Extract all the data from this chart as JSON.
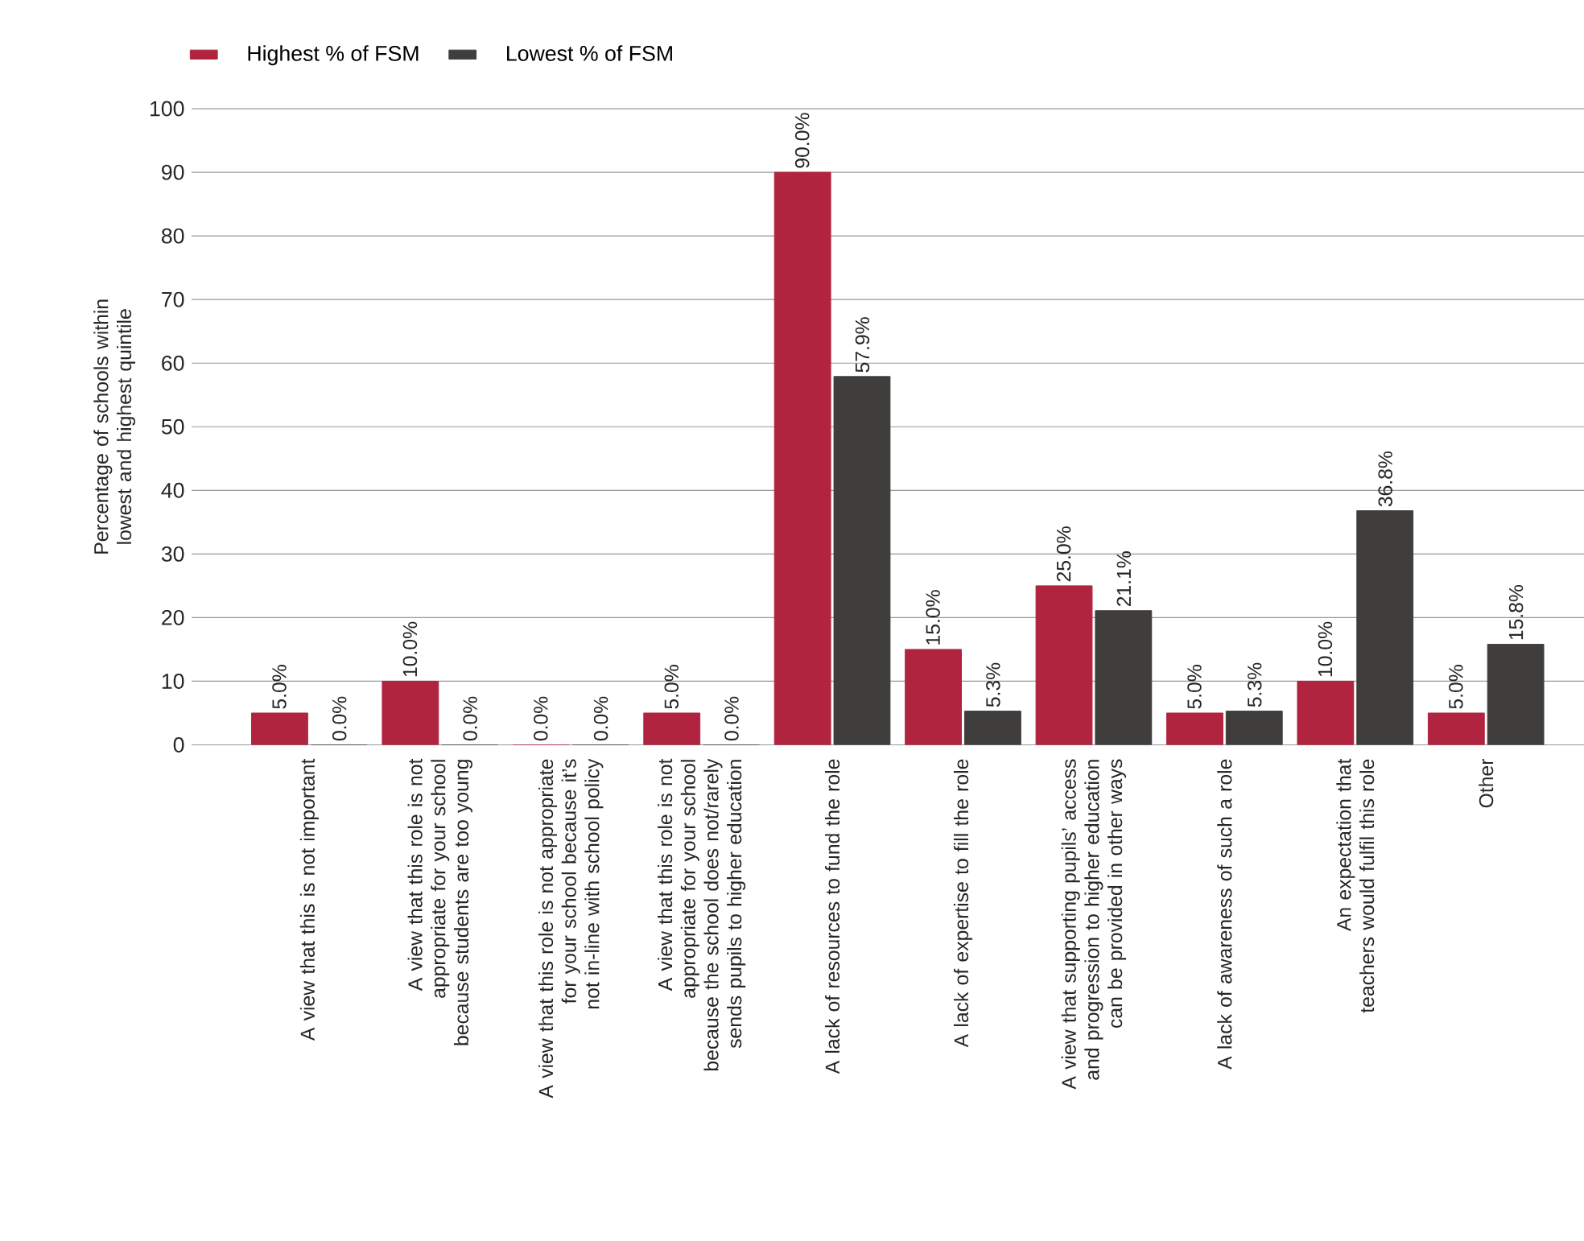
{
  "chart_data": {
    "type": "bar",
    "ylabel": "Percentage of schools within lowest and highest quintile",
    "categories": [
      "A view that this is not important",
      "A view that this role is not appropriate for your school because students are too young",
      "A view that this role is not appropriate for your school because it’s not in-line with school policy",
      "A view that this role is not appropriate for your school because the school does not/rarely sends pupils to higher education",
      "A lack of resources to fund the role",
      "A lack of expertise to fill the role",
      "A view that supporting pupils’ access and progression to higher education can be provided in other ways",
      "A lack of awareness of such a role",
      "An expectation that teachers would fulfil this role",
      "Other"
    ],
    "series": [
      {
        "name": "Highest % of FSM",
        "color": "#b0243f",
        "values": [
          5.0,
          10.0,
          0.0,
          5.0,
          90.0,
          15.0,
          25.0,
          5.0,
          10.0,
          5.0
        ],
        "value_labels": [
          "5.0%",
          "10.0%",
          "0.0%",
          "5.0%",
          "90.0%",
          "15.0%",
          "25.0%",
          "5.0%",
          "10.0%",
          "5.0%"
        ]
      },
      {
        "name": "Lowest % of FSM",
        "color": "#3f3e3c",
        "values": [
          0.0,
          0.0,
          0.0,
          0.0,
          57.9,
          5.3,
          21.1,
          5.3,
          36.8,
          15.8
        ],
        "value_labels": [
          "0.0%",
          "0.0%",
          "0.0%",
          "0.0%",
          "57.9%",
          "5.3%",
          "21.1%",
          "5.3%",
          "36.8%",
          "15.8%"
        ]
      }
    ],
    "ylim": [
      0,
      100
    ],
    "yticks": [
      0,
      10,
      20,
      30,
      40,
      50,
      60,
      70,
      80,
      90,
      100
    ],
    "grid": "y",
    "legend": "top left"
  }
}
